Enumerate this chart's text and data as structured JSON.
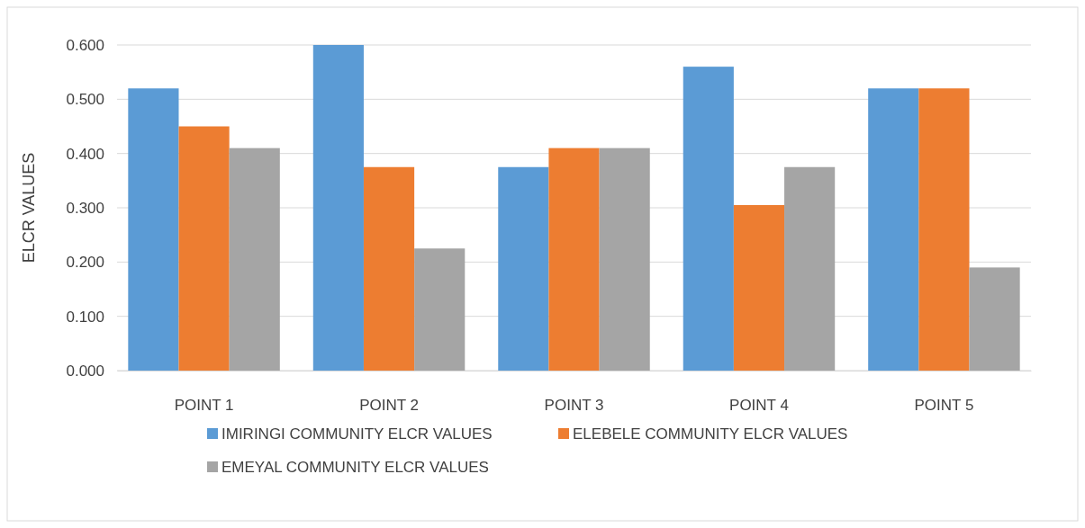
{
  "chart_data": {
    "type": "bar",
    "ylabel": "ELCR VALUES",
    "categories": [
      "POINT 1",
      "POINT 2",
      "POINT 3",
      "POINT 4",
      "POINT 5"
    ],
    "series": [
      {
        "name": "IMIRINGI COMMUNITY ELCR VALUES",
        "color": "#5b9bd5",
        "values": [
          0.52,
          0.6,
          0.375,
          0.56,
          0.52
        ]
      },
      {
        "name": "ELEBELE COMMUNITY ELCR VALUES",
        "color": "#ed7d31",
        "values": [
          0.45,
          0.375,
          0.41,
          0.305,
          0.52
        ]
      },
      {
        "name": "EMEYAL COMMUNITY ELCR VALUES",
        "color": "#a5a5a5",
        "values": [
          0.41,
          0.225,
          0.41,
          0.375,
          0.19
        ]
      }
    ],
    "ylim": [
      0,
      0.6
    ],
    "yticks": [
      {
        "value": 0,
        "label": "0.000"
      },
      {
        "value": 0.1,
        "label": "0.100"
      },
      {
        "value": 0.2,
        "label": "0.200"
      },
      {
        "value": 0.3,
        "label": "0.300"
      },
      {
        "value": 0.4,
        "label": "0.400"
      },
      {
        "value": 0.5,
        "label": "0.500"
      },
      {
        "value": 0.6,
        "label": "0.600"
      }
    ],
    "grid": "y",
    "legend": "bottom"
  }
}
